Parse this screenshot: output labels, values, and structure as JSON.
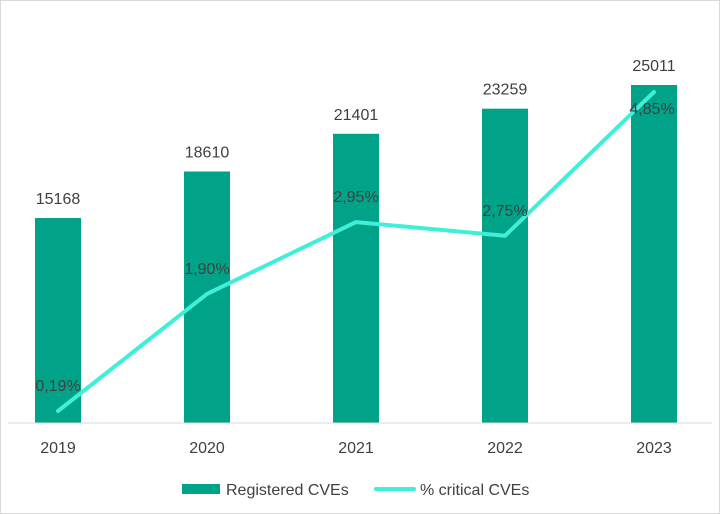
{
  "chart_data": {
    "type": "bar",
    "categories": [
      "2019",
      "2020",
      "2021",
      "2022",
      "2023"
    ],
    "series": [
      {
        "name": "Registered CVEs",
        "kind": "bar",
        "color": "#00a388",
        "values": [
          15168,
          18610,
          21401,
          23259,
          25011
        ],
        "labels": [
          "15168",
          "18610",
          "21401",
          "23259",
          "25011"
        ]
      },
      {
        "name": "% critical CVEs",
        "kind": "line",
        "color": "#3ef0d7",
        "values": [
          0.19,
          1.9,
          2.95,
          2.75,
          4.85
        ],
        "labels": [
          "0,19%",
          "1,90%",
          "2,95%",
          "2,75%",
          "4,85%"
        ]
      }
    ],
    "ylim_bar": [
      0,
      26000
    ],
    "ylim_line": [
      0,
      5.1
    ],
    "gridlines": false,
    "legend_position": "bottom"
  }
}
